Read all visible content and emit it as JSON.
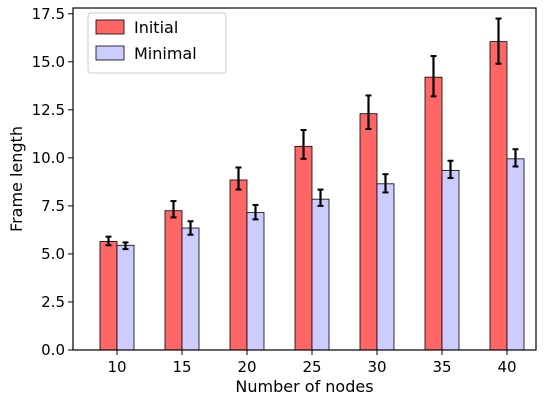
{
  "chart_data": {
    "type": "bar",
    "title": "",
    "xlabel": "Number of nodes",
    "ylabel": "Frame length",
    "categories": [
      "10",
      "15",
      "20",
      "25",
      "30",
      "35",
      "40"
    ],
    "series": [
      {
        "name": "Initial",
        "color": "#ff6666",
        "values": [
          5.65,
          7.25,
          8.85,
          10.6,
          12.3,
          14.2,
          16.05
        ],
        "err_low": [
          5.45,
          6.9,
          8.35,
          9.95,
          11.5,
          13.2,
          14.9
        ],
        "err_high": [
          5.9,
          7.75,
          9.5,
          11.45,
          13.25,
          15.3,
          17.25
        ]
      },
      {
        "name": "Minimal",
        "color": "#ccccff",
        "values": [
          5.45,
          6.35,
          7.15,
          7.85,
          8.65,
          9.35,
          9.95
        ],
        "err_low": [
          5.25,
          6.0,
          6.8,
          7.5,
          8.2,
          8.95,
          9.55
        ],
        "err_high": [
          5.6,
          6.7,
          7.55,
          8.35,
          9.15,
          9.85,
          10.45
        ]
      }
    ],
    "ylim": [
      0,
      17.8
    ],
    "yticks": [
      0.0,
      2.5,
      5.0,
      7.5,
      10.0,
      12.5,
      15.0,
      17.5
    ],
    "ytick_labels": [
      "0.0",
      "2.5",
      "5.0",
      "7.5",
      "10.0",
      "12.5",
      "15.0",
      "17.5"
    ],
    "grid": false,
    "legend_position": "top-left",
    "error_bars": true
  }
}
